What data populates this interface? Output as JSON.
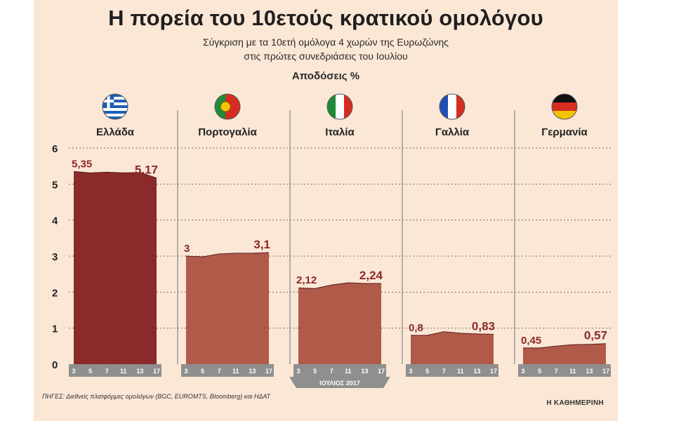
{
  "title": "Η πορεία του 10ετούς κρατικού ομολόγου",
  "subtitle_line1": "Σύγκριση με τα 10ετή ομόλογα 4 χωρών της Ευρωζώνης",
  "subtitle_line2": "στις πρώτες συνεδριάσεις του Ιουλίου",
  "unit_label": "Αποδόσεις %",
  "source": "ΠΗΓΕΣ: Διεθνείς πλατφόρμες ομολόγων (BGC, EUROMTS, Bloomberg) και ΗΔΑΤ",
  "brand": "Η ΚΑΘΗΜΕΡΙΝΗ",
  "colors": {
    "greece_fill": "#8b2a2a",
    "others_fill": "#b05a4a",
    "label_color": "#8b2a2a",
    "axis_band": "#8f8f8f",
    "panel_bg": "#fbe7d6"
  },
  "chart_data": {
    "type": "area",
    "x_label": "ΙΟΥΛΙΟΣ 2017",
    "x_ticks": [
      "3",
      "5",
      "7",
      "11",
      "13",
      "17"
    ],
    "y_ticks": [
      "0",
      "1",
      "2",
      "3",
      "4",
      "5",
      "6"
    ],
    "ylim": [
      0,
      6
    ],
    "grid": true,
    "series": [
      {
        "name": "Ελλάδα",
        "flag": "greece-flag",
        "start_label": "5,35",
        "end_label": "5,17",
        "values": [
          5.35,
          5.31,
          5.33,
          5.31,
          5.32,
          5.17
        ]
      },
      {
        "name": "Πορτογαλία",
        "flag": "portugal-flag",
        "start_label": "3",
        "end_label": "3,1",
        "values": [
          3.0,
          2.98,
          3.06,
          3.08,
          3.08,
          3.1
        ]
      },
      {
        "name": "Ιταλία",
        "flag": "italy-flag",
        "start_label": "2,12",
        "end_label": "2,24",
        "values": [
          2.12,
          2.1,
          2.2,
          2.26,
          2.24,
          2.24
        ]
      },
      {
        "name": "Γαλλία",
        "flag": "france-flag",
        "start_label": "0,8",
        "end_label": "0,83",
        "values": [
          0.8,
          0.8,
          0.9,
          0.86,
          0.84,
          0.83
        ]
      },
      {
        "name": "Γερμανία",
        "flag": "germany-flag",
        "start_label": "0,45",
        "end_label": "0,57",
        "values": [
          0.45,
          0.45,
          0.5,
          0.54,
          0.55,
          0.57
        ]
      }
    ]
  }
}
